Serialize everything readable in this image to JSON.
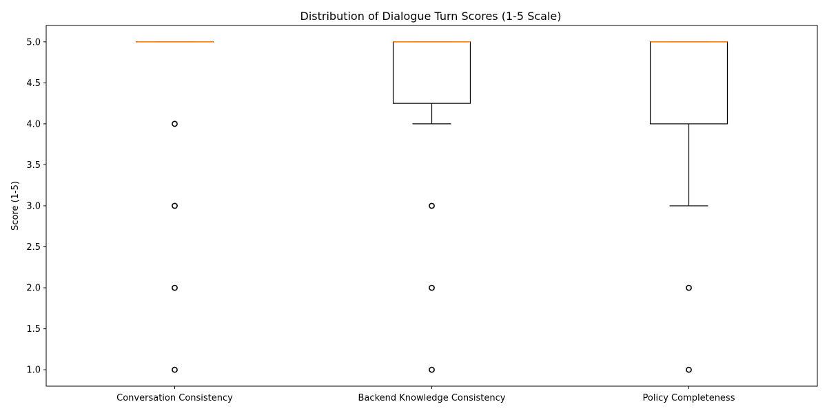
{
  "chart_data": {
    "type": "box",
    "title": "Distribution of Dialogue Turn Scores (1-5 Scale)",
    "xlabel": "",
    "ylabel": "Score (1-5)",
    "ylim": [
      0.8,
      5.2
    ],
    "yticks": [
      1.0,
      1.5,
      2.0,
      2.5,
      3.0,
      3.5,
      4.0,
      4.5,
      5.0
    ],
    "ytick_labels": [
      "1.0",
      "1.5",
      "2.0",
      "2.5",
      "3.0",
      "3.5",
      "4.0",
      "4.5",
      "5.0"
    ],
    "grid": false,
    "box_color": "#000000",
    "median_color": "#ff7f0e",
    "categories": [
      "Conversation Consistency",
      "Backend Knowledge Consistency",
      "Policy Completeness"
    ],
    "boxes": [
      {
        "category": "Conversation Consistency",
        "whisker_low": 5,
        "q1": 5,
        "median": 5,
        "q3": 5,
        "whisker_high": 5,
        "outliers": [
          4,
          3,
          2,
          1
        ]
      },
      {
        "category": "Backend Knowledge Consistency",
        "whisker_low": 4,
        "q1": 4.25,
        "median": 5,
        "q3": 5,
        "whisker_high": 5,
        "outliers": [
          3,
          2,
          1
        ]
      },
      {
        "category": "Policy Completeness",
        "whisker_low": 3,
        "q1": 4,
        "median": 5,
        "q3": 5,
        "whisker_high": 5,
        "outliers": [
          2,
          1
        ]
      }
    ]
  }
}
